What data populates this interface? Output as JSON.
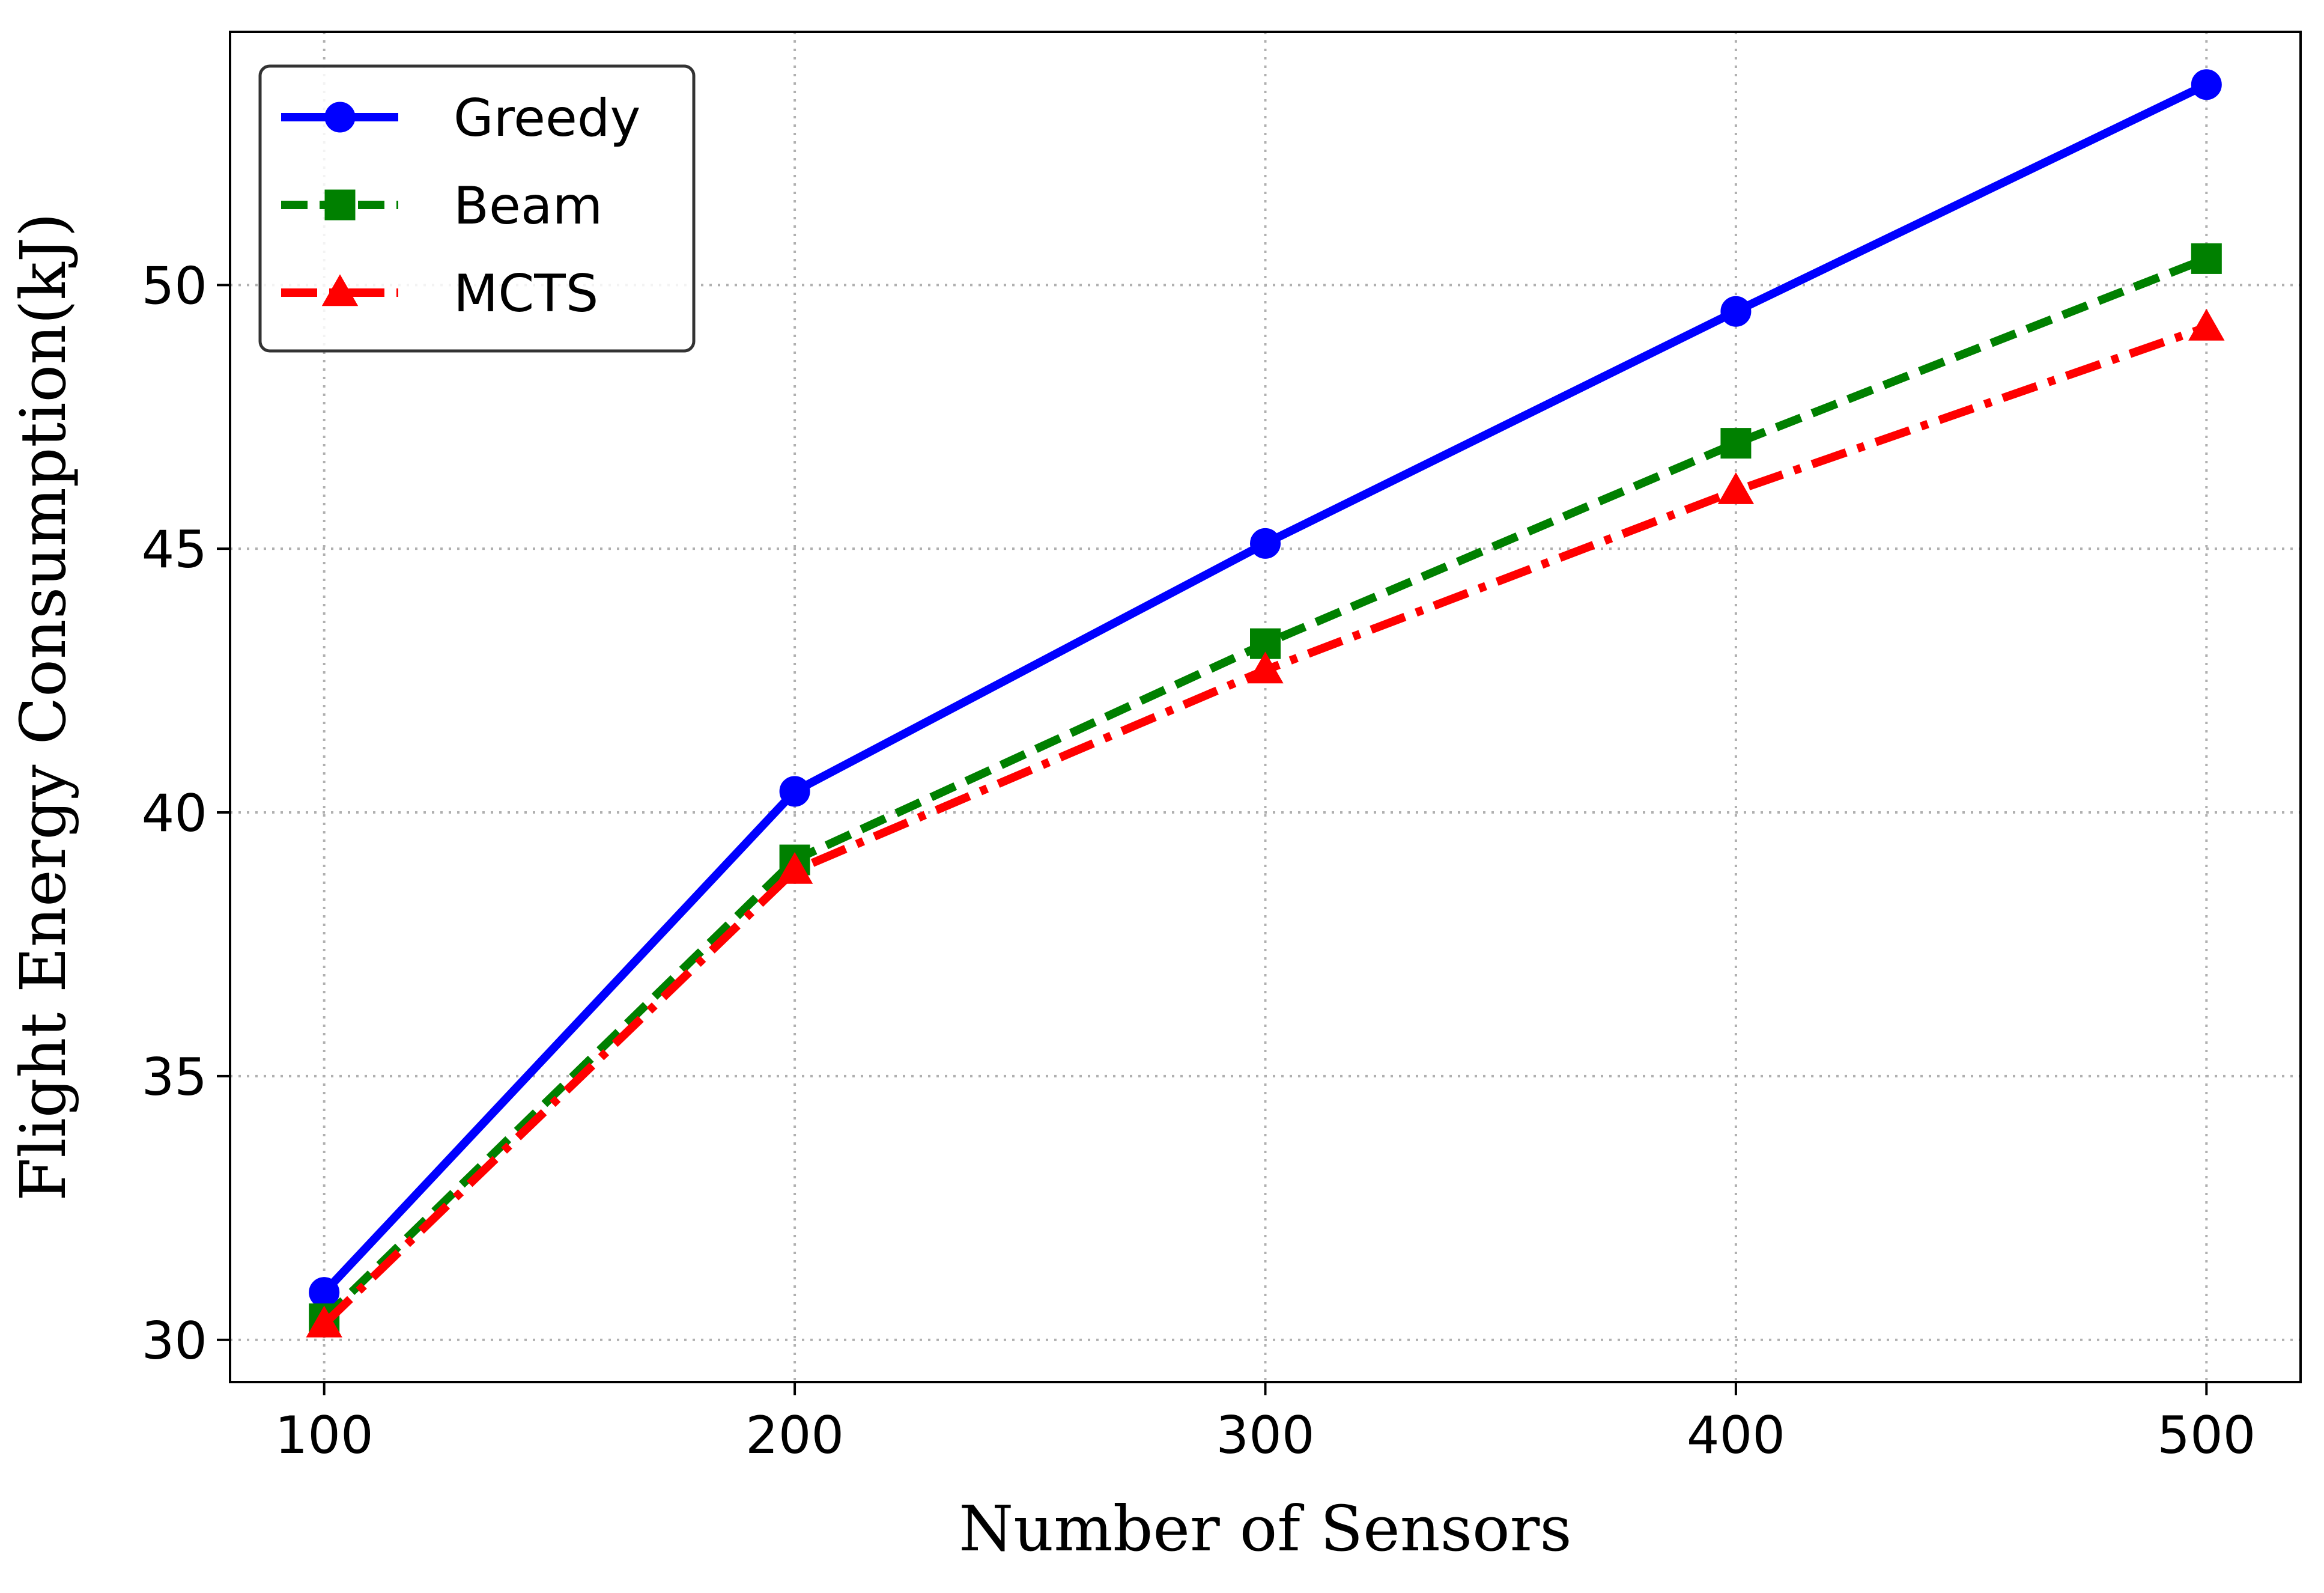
{
  "chart_data": {
    "type": "line",
    "title": "",
    "xlabel": "Number of Sensors",
    "ylabel": "Flight Energy Consumption(kJ)",
    "x": [
      100,
      200,
      300,
      400,
      500
    ],
    "xlim": [
      80,
      520
    ],
    "ylim": [
      29.2,
      54.8
    ],
    "xticks": [
      100,
      200,
      300,
      400,
      500
    ],
    "yticks": [
      30,
      35,
      40,
      45,
      50
    ],
    "grid": true,
    "grid_style": "dotted",
    "legend_position": "top-left",
    "series": [
      {
        "name": "Greedy",
        "values": [
          30.9,
          40.4,
          45.1,
          49.5,
          53.8
        ],
        "color": "#0000ff",
        "line_style": "solid",
        "marker": "circle"
      },
      {
        "name": "Beam",
        "values": [
          30.4,
          39.1,
          43.2,
          47.0,
          50.5
        ],
        "color": "#008000",
        "line_style": "dashed",
        "marker": "square"
      },
      {
        "name": "MCTS",
        "values": [
          30.3,
          38.9,
          42.7,
          46.1,
          49.2
        ],
        "color": "#ff0000",
        "line_style": "dashdot",
        "marker": "triangle"
      }
    ]
  }
}
